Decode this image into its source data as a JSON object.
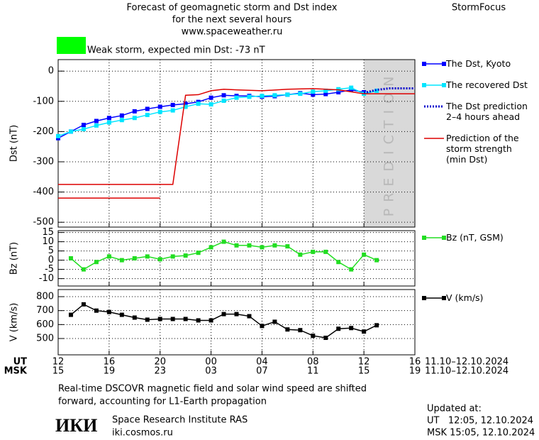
{
  "header": {
    "title_lines": [
      "Forecast of geomagnetic storm and Dst index",
      "for the next several hours",
      "www.spaceweather.ru"
    ],
    "brand": "StormFocus"
  },
  "storm": {
    "label": "Weak storm, expected min Dst: -73 nT",
    "color": "#00ff00"
  },
  "x_axis": {
    "ut_label": "UT",
    "msk_label": "MSK",
    "msk_ticks": [
      "15",
      "19",
      "23",
      "03",
      "07",
      "11",
      "15",
      "19"
    ],
    "date_range": "11.10–12.10.2024"
  },
  "chart_data": [
    {
      "type": "line",
      "ylabel": "Dst (nT)",
      "xlim": [
        0,
        28
      ],
      "xticks": [
        0,
        4,
        8,
        12,
        16,
        20,
        24,
        28
      ],
      "ylim": [
        -516,
        38
      ],
      "yticks": [
        0,
        -100,
        -200,
        -300,
        -400,
        -500
      ],
      "grid": true,
      "prediction_region": {
        "xlim": [
          24,
          28
        ],
        "label": "PREDICTION",
        "color": "#d9d9d9"
      },
      "series": [
        {
          "name": "The Dst, Kyoto",
          "color": "#0000ff",
          "marker": "square",
          "x": [
            0,
            1,
            2,
            3,
            4,
            5,
            6,
            7,
            8,
            9,
            10,
            11,
            12,
            13,
            14,
            15,
            16,
            17,
            18,
            19,
            20,
            21,
            22,
            23,
            24
          ],
          "values": [
            -222,
            -200,
            -178,
            -165,
            -155,
            -147,
            -133,
            -125,
            -118,
            -112,
            -108,
            -102,
            -88,
            -80,
            -82,
            -82,
            -85,
            -83,
            -78,
            -73,
            -78,
            -76,
            -70,
            -62,
            -70
          ]
        },
        {
          "name": "The recovered Dst",
          "color": "#00e5ff",
          "marker": "square",
          "x": [
            0,
            1,
            2,
            3,
            4,
            5,
            6,
            7,
            8,
            9,
            10,
            11,
            12,
            13,
            14,
            15,
            16,
            17,
            18,
            19,
            20,
            21,
            22,
            23,
            24,
            25
          ],
          "values": [
            -215,
            -200,
            -192,
            -180,
            -170,
            -162,
            -155,
            -145,
            -135,
            -130,
            -118,
            -108,
            -110,
            -98,
            -88,
            -85,
            -82,
            -80,
            -78,
            -75,
            -68,
            -65,
            -60,
            -55,
            -75,
            -65
          ]
        },
        {
          "name": "The Dst prediction\n2–4 hours ahead",
          "color": "#0000cc",
          "dash": "dotted",
          "x": [
            24,
            25,
            26,
            27,
            28
          ],
          "values": [
            -72,
            -62,
            -57,
            -57,
            -57
          ]
        },
        {
          "name": "Prediction of the\nstorm strength\n(min Dst)",
          "color": "#dd0000",
          "x": [
            0,
            9,
            10,
            11,
            12,
            13,
            14,
            16,
            18,
            20,
            22,
            24,
            28
          ],
          "values": [
            -375,
            -375,
            -80,
            -78,
            -65,
            -60,
            -62,
            -65,
            -60,
            -58,
            -62,
            -75,
            -75
          ]
        },
        {
          "color": "#dd0000",
          "x": [
            0,
            8
          ],
          "values": [
            -420,
            -420
          ]
        }
      ]
    },
    {
      "type": "line",
      "ylabel": "Bz (nT)",
      "xlim": [
        0,
        28
      ],
      "xticks": [
        0,
        4,
        8,
        12,
        16,
        20,
        24,
        28
      ],
      "ylim": [
        -14,
        16
      ],
      "yticks": [
        15,
        10,
        5,
        0,
        -5,
        -10
      ],
      "grid": true,
      "series": [
        {
          "name": "Bz (nT, GSM)",
          "color": "#22dd22",
          "marker": "square",
          "x": [
            1,
            2,
            3,
            4,
            5,
            6,
            7,
            8,
            9,
            10,
            11,
            12,
            13,
            14,
            15,
            16,
            17,
            18,
            19,
            20,
            21,
            22,
            23,
            24,
            25
          ],
          "values": [
            1,
            -5,
            -1,
            2,
            0,
            1,
            2,
            0.5,
            2,
            2.5,
            4,
            7,
            10,
            8,
            8,
            7,
            8,
            7.5,
            3,
            4.5,
            4.5,
            -1,
            -5,
            3,
            0
          ]
        }
      ]
    },
    {
      "type": "line",
      "ylabel": "V (km/s)",
      "xlim": [
        0,
        28
      ],
      "xticks": [
        {
          "value": 0,
          "label": "12"
        },
        {
          "value": 4,
          "label": "16"
        },
        {
          "value": 8,
          "label": "20"
        },
        {
          "value": 12,
          "label": "00"
        },
        {
          "value": 16,
          "label": "04"
        },
        {
          "value": 20,
          "label": "08"
        },
        {
          "value": 24,
          "label": "12"
        },
        {
          "value": 28,
          "label": "16"
        }
      ],
      "ylim": [
        383,
        851
      ],
      "yticks": [
        800,
        700,
        600,
        500
      ],
      "grid": true,
      "series": [
        {
          "name": "V (km/s)",
          "color": "#000000",
          "marker": "square",
          "x": [
            1,
            2,
            3,
            4,
            5,
            6,
            7,
            8,
            9,
            10,
            11,
            12,
            13,
            14,
            15,
            16,
            17,
            18,
            19,
            20,
            21,
            22,
            23,
            24,
            25
          ],
          "values": [
            670,
            745,
            700,
            690,
            670,
            650,
            635,
            640,
            640,
            640,
            630,
            630,
            675,
            675,
            660,
            590,
            620,
            565,
            560,
            520,
            505,
            570,
            575,
            550,
            595
          ]
        }
      ]
    }
  ],
  "footer": {
    "note_lines": [
      "Real-time DSCOVR magnetic field and solar wind speed are shifted",
      "forward, accounting for L1-Earth propagation"
    ],
    "logo": "ИКИ",
    "institute": "Space Research Institute RAS",
    "site": "iki.cosmos.ru",
    "updated": {
      "label": "Updated at:",
      "ut": "UT   12:05, 12.10.2024",
      "msk": "MSK 15:05, 12.10.2024"
    }
  }
}
